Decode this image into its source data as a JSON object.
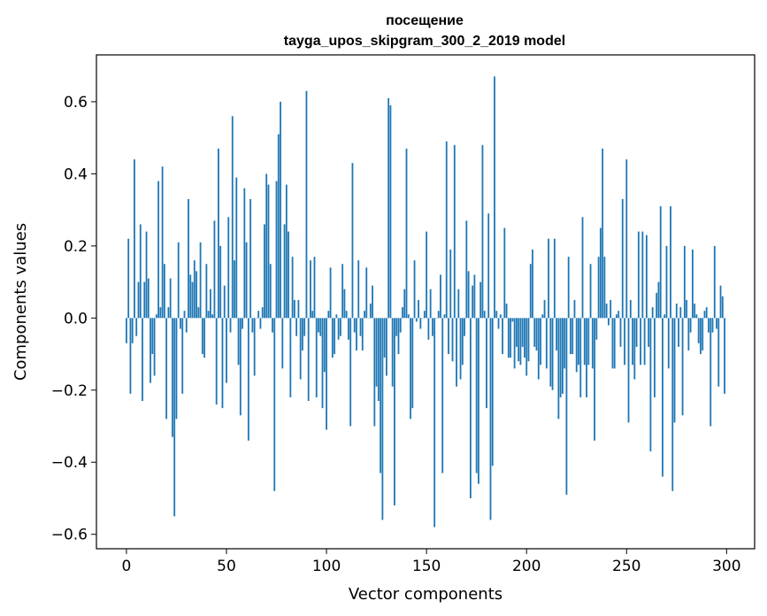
{
  "chart_data": {
    "type": "bar",
    "title_line1": "посещение",
    "title_line2": "tayga_upos_skipgram_300_2_2019 model",
    "xlabel": "Vector components",
    "ylabel": "Components values",
    "xlim": [
      -15,
      314
    ],
    "ylim": [
      -0.64,
      0.73
    ],
    "xticks": [
      0,
      50,
      100,
      150,
      200,
      250,
      300
    ],
    "yticks": [
      -0.6,
      -0.4,
      -0.2,
      0.0,
      0.2,
      0.4,
      0.6
    ],
    "ytick_labels": [
      "−0.6",
      "−0.4",
      "−0.2",
      "0.0",
      "0.2",
      "0.4",
      "0.6"
    ],
    "bar_color": "#1f77b4",
    "values": [
      -0.07,
      0.22,
      -0.21,
      -0.07,
      0.44,
      -0.05,
      0.1,
      0.26,
      -0.23,
      0.1,
      0.24,
      0.11,
      -0.18,
      -0.1,
      -0.16,
      0.01,
      0.38,
      0.03,
      0.42,
      0.15,
      -0.28,
      0.03,
      0.11,
      -0.33,
      -0.55,
      -0.28,
      0.21,
      -0.03,
      -0.21,
      0.02,
      -0.04,
      0.33,
      0.12,
      0.1,
      0.16,
      0.13,
      0.03,
      0.21,
      -0.1,
      -0.11,
      0.15,
      0.02,
      0.08,
      0.01,
      0.27,
      -0.24,
      0.47,
      0.2,
      -0.25,
      0.09,
      -0.18,
      0.28,
      -0.04,
      0.56,
      0.16,
      0.39,
      -0.13,
      -0.27,
      -0.03,
      0.36,
      0.21,
      -0.34,
      0.33,
      -0.04,
      -0.16,
      0.0,
      0.02,
      -0.03,
      0.03,
      0.26,
      0.4,
      0.37,
      0.15,
      -0.04,
      -0.48,
      0.38,
      0.51,
      0.6,
      -0.14,
      0.26,
      0.37,
      0.24,
      -0.22,
      0.17,
      0.05,
      -0.05,
      0.05,
      -0.17,
      -0.09,
      -0.05,
      0.63,
      -0.23,
      0.16,
      0.02,
      0.17,
      -0.22,
      -0.04,
      -0.05,
      -0.25,
      -0.15,
      -0.31,
      0.02,
      0.14,
      -0.11,
      -0.1,
      0.01,
      -0.06,
      -0.05,
      0.15,
      0.08,
      0.02,
      -0.06,
      -0.3,
      0.43,
      -0.04,
      -0.09,
      0.16,
      -0.05,
      -0.09,
      0.02,
      0.14,
      0.0,
      0.04,
      0.09,
      -0.3,
      -0.19,
      -0.23,
      -0.43,
      -0.56,
      -0.11,
      -0.16,
      0.61,
      0.59,
      -0.19,
      -0.52,
      -0.05,
      -0.1,
      -0.04,
      0.03,
      0.08,
      0.47,
      0.01,
      -0.28,
      -0.25,
      0.16,
      -0.01,
      0.05,
      -0.03,
      0.0,
      0.02,
      0.24,
      -0.06,
      0.08,
      -0.05,
      -0.58,
      0.0,
      0.02,
      0.12,
      -0.43,
      0.01,
      0.49,
      -0.1,
      0.19,
      -0.12,
      0.48,
      -0.19,
      0.08,
      -0.17,
      -0.13,
      -0.05,
      0.27,
      0.13,
      -0.5,
      0.09,
      0.12,
      -0.43,
      -0.46,
      0.1,
      0.48,
      0.02,
      -0.25,
      0.29,
      -0.56,
      -0.41,
      0.67,
      0.02,
      -0.03,
      0.01,
      -0.1,
      0.25,
      0.04,
      -0.11,
      -0.11,
      -0.01,
      -0.14,
      -0.08,
      -0.12,
      -0.13,
      -0.08,
      -0.11,
      -0.16,
      -0.12,
      0.15,
      0.19,
      -0.08,
      -0.09,
      -0.17,
      -0.13,
      0.01,
      0.05,
      -0.14,
      0.22,
      -0.19,
      -0.2,
      0.22,
      -0.09,
      -0.28,
      -0.22,
      -0.21,
      -0.14,
      -0.49,
      0.17,
      -0.1,
      -0.1,
      0.05,
      -0.15,
      -0.13,
      -0.22,
      0.28,
      -0.13,
      -0.22,
      -0.13,
      0.15,
      -0.14,
      -0.34,
      -0.06,
      0.17,
      0.25,
      0.47,
      0.17,
      0.04,
      -0.02,
      0.05,
      -0.14,
      -0.14,
      0.01,
      0.02,
      -0.08,
      0.33,
      -0.13,
      0.44,
      -0.29,
      0.05,
      -0.13,
      -0.17,
      -0.08,
      0.24,
      -0.13,
      0.24,
      -0.13,
      0.23,
      -0.08,
      -0.37,
      0.03,
      -0.22,
      0.07,
      0.1,
      0.31,
      -0.44,
      0.01,
      0.2,
      -0.14,
      0.31,
      -0.48,
      -0.29,
      0.04,
      -0.08,
      0.03,
      -0.27,
      0.2,
      0.05,
      -0.09,
      -0.04,
      0.19,
      0.04,
      0.01,
      -0.07,
      -0.1,
      -0.09,
      0.02,
      0.03,
      -0.04,
      -0.3,
      -0.04,
      0.2,
      -0.03,
      -0.19,
      0.09,
      0.06,
      -0.21
    ]
  }
}
